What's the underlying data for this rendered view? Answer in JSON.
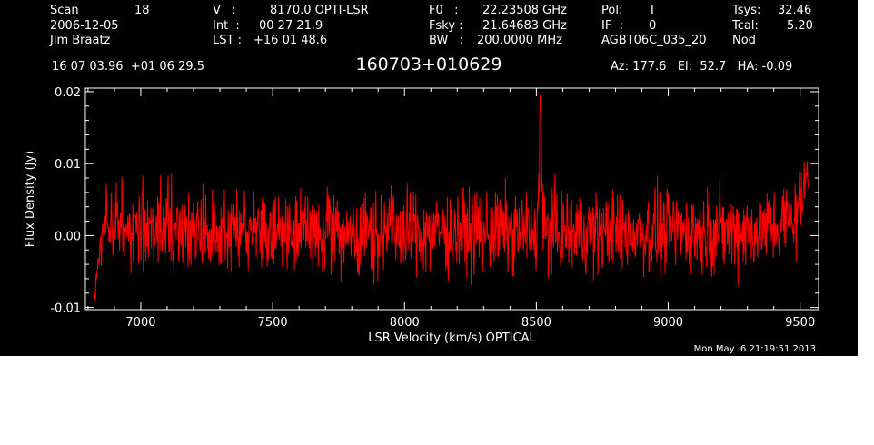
{
  "header": {
    "scan_label": "Scan",
    "scan_number": "18",
    "date": "2006-12-05",
    "observer": "Jim Braatz",
    "velocity_label": "V   :",
    "velocity_value": "8170.0 OPTI-LSR",
    "int_label": "Int  :",
    "int_value": "00 27 21.9",
    "lst_label": "LST :",
    "lst_value": "+16 01 48.6",
    "f0_label": "F0   :",
    "f0_value": "22.23508 GHz",
    "fsky_label": "Fsky :",
    "fsky_value": "21.64683 GHz",
    "bw_label": "BW   :",
    "bw_value": "200.0000 MHz",
    "pol_label": "Pol:",
    "pol_value": "I",
    "if_label": "IF  :",
    "if_value": "0",
    "project": "AGBT06C_035_20",
    "tsys_label": "Tsys:",
    "tsys_value": "32.46",
    "tcal_label": "Tcal:",
    "tcal_value": "5.20",
    "proc": "Nod",
    "coords": "16 07 03.96  +01 06 29.5",
    "source": "160703+010629",
    "az_el_ha": "Az: 177.6   El:  52.7   HA: -0.09"
  },
  "timestamp": "Mon May  6 21:19:51 2013",
  "colors": {
    "background": "#000000",
    "axes": "#ffffff",
    "trace": "#ff0000"
  },
  "chart_data": {
    "type": "line",
    "title": "160703+010629",
    "xlabel": "LSR Velocity (km/s) OPTICAL",
    "ylabel": "Flux Density (Jy)",
    "xlim": [
      6790,
      9570
    ],
    "ylim": [
      -0.0103,
      0.0205
    ],
    "xticks": [
      7000,
      7500,
      8000,
      8500,
      9000,
      9500
    ],
    "yticks": [
      -0.01,
      0.0,
      0.01,
      0.02
    ],
    "ytick_labels": [
      "-0.01",
      "0.00",
      "0.01",
      "0.02"
    ],
    "grid": false,
    "series": [
      {
        "color": "#ff0000",
        "noise_rms": 0.0028,
        "x": [
          6820,
          6830,
          6840,
          6850,
          6860,
          6880,
          6950,
          7100,
          7500,
          8000,
          8500,
          8505,
          8515,
          8525,
          8530,
          9000,
          9300,
          9400,
          9450,
          9480,
          9500,
          9520,
          9530
        ],
        "y": [
          -0.0085,
          -0.007,
          -0.004,
          -0.001,
          0.001,
          0.0015,
          0.0012,
          0.001,
          0.0005,
          0.0005,
          0.0006,
          0.0006,
          0.0195,
          0.0006,
          0.0005,
          0.0005,
          0.0008,
          0.0012,
          0.002,
          0.003,
          0.004,
          0.007,
          0.013
        ]
      }
    ]
  }
}
